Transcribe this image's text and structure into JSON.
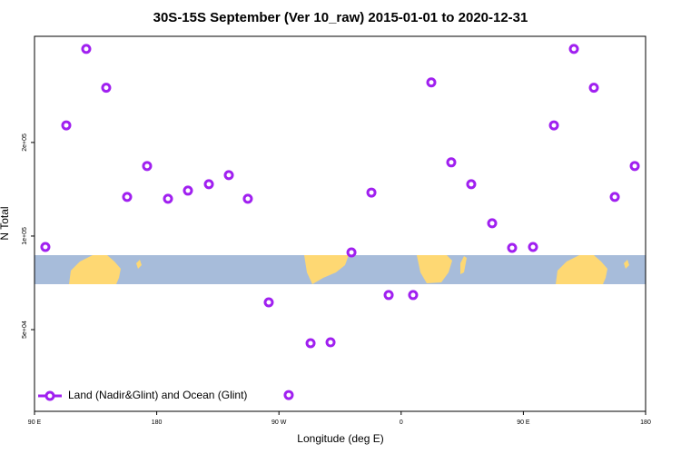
{
  "chart_data": {
    "type": "scatter",
    "title": "30S-15S September (Ver 10_raw)   2015-01-01 to 2020-12-31",
    "x_label": "Longitude (deg E)",
    "y_label": "N Total",
    "xlim": [
      90,
      540
    ],
    "xticks": [
      {
        "value": 90,
        "label": "90 E"
      },
      {
        "value": 180,
        "label": "180"
      },
      {
        "value": 270,
        "label": "90 W"
      },
      {
        "value": 360,
        "label": "0"
      },
      {
        "value": 450,
        "label": "90 E"
      },
      {
        "value": 540,
        "label": "180"
      }
    ],
    "ylim": [
      27300,
      439000
    ],
    "ylog": true,
    "yticks": [
      {
        "value": 50000,
        "label": "5e+04"
      },
      {
        "value": 100000,
        "label": "1e+05"
      },
      {
        "value": 200000,
        "label": "2e+05"
      }
    ],
    "legend": "bottom-left",
    "x": [
      98.0,
      113.4,
      128.1,
      142.8,
      158.2,
      172.9,
      188.3,
      203.0,
      218.4,
      233.1,
      247.1,
      262.5,
      277.2,
      293.3,
      308.0,
      323.4,
      338.1,
      350.8,
      368.8,
      382.2,
      396.9,
      411.6,
      427.0,
      441.7,
      457.1,
      472.5,
      487.2,
      501.9,
      517.3,
      532.0
    ],
    "series": [
      {
        "name": "Land (Nadir&Glint) and Ocean (Glint)",
        "color": "#a020f0",
        "values": [
          92200,
          227000,
          400000,
          300000,
          133600,
          168000,
          131800,
          140000,
          146800,
          157000,
          131800,
          61200,
          30800,
          45200,
          45500,
          88600,
          138000,
          64600,
          64600,
          312000,
          172600,
          146800,
          109900,
          91600,
          92200,
          227000,
          400000,
          300000,
          133600,
          168000
        ]
      }
    ]
  }
}
